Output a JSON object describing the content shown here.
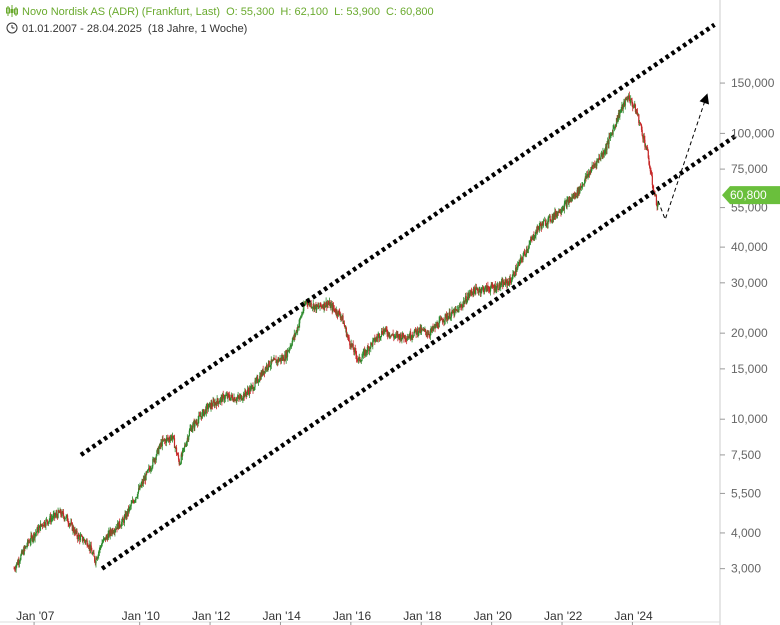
{
  "header": {
    "title": "Novo Nordisk AS (ADR) (Frankfurt, Last)",
    "open": "O: 55,300",
    "high": "H: 62,100",
    "low": "L: 53,900",
    "close": "C: 60,800",
    "range": "01.01.2007 - 28.04.2025",
    "duration": "(18 Jahre, 1 Woche)"
  },
  "icons": {
    "chart": "candlestick-icon",
    "clock": "clock-icon"
  },
  "colors": {
    "up": "#2e8b2e",
    "down": "#c62828",
    "accent": "#6abf3c",
    "trendline": "#000000"
  },
  "chart_data": {
    "type": "candlestick",
    "scale": "log",
    "ylim": [
      2500,
      210000
    ],
    "x_range": [
      "2007-01-01",
      "2025-04-28"
    ],
    "y_ticks": [
      {
        "v": 150000,
        "label": "150,000"
      },
      {
        "v": 100000,
        "label": "100,000"
      },
      {
        "v": 75000,
        "label": "75,000"
      },
      {
        "v": 55000,
        "label": "55,000"
      },
      {
        "v": 40000,
        "label": "40,000"
      },
      {
        "v": 30000,
        "label": "30,000"
      },
      {
        "v": 20000,
        "label": "20,000"
      },
      {
        "v": 15000,
        "label": "15,000"
      },
      {
        "v": 10000,
        "label": "10,000"
      },
      {
        "v": 7500,
        "label": "7,500"
      },
      {
        "v": 5500,
        "label": "5,500"
      },
      {
        "v": 4000,
        "label": "4,000"
      },
      {
        "v": 3000,
        "label": "3,000"
      }
    ],
    "x_ticks": [
      {
        "t": 2007.0,
        "label": "Jan '07"
      },
      {
        "t": 2010.0,
        "label": "Jan '10"
      },
      {
        "t": 2012.0,
        "label": "Jan '12"
      },
      {
        "t": 2014.0,
        "label": "Jan '14"
      },
      {
        "t": 2016.0,
        "label": "Jan '16"
      },
      {
        "t": 2018.0,
        "label": "Jan '18"
      },
      {
        "t": 2020.0,
        "label": "Jan '20"
      },
      {
        "t": 2022.0,
        "label": "Jan '22"
      },
      {
        "t": 2024.0,
        "label": "Jan '24"
      }
    ],
    "last_price": {
      "v": 60800,
      "label": "60,800"
    },
    "price_path": [
      [
        2007.0,
        3000
      ],
      [
        2007.4,
        3700
      ],
      [
        2007.8,
        4300
      ],
      [
        2008.3,
        4700
      ],
      [
        2008.5,
        4500
      ],
      [
        2008.8,
        3900
      ],
      [
        2009.1,
        3700
      ],
      [
        2009.3,
        3200
      ],
      [
        2009.5,
        3700
      ],
      [
        2009.8,
        4100
      ],
      [
        2010.1,
        4400
      ],
      [
        2010.5,
        5500
      ],
      [
        2010.9,
        6900
      ],
      [
        2011.2,
        8300
      ],
      [
        2011.5,
        8700
      ],
      [
        2011.7,
        7000
      ],
      [
        2012.0,
        9200
      ],
      [
        2012.5,
        11000
      ],
      [
        2013.0,
        12000
      ],
      [
        2013.4,
        11800
      ],
      [
        2013.8,
        13000
      ],
      [
        2014.2,
        15500
      ],
      [
        2014.7,
        16500
      ],
      [
        2015.0,
        20000
      ],
      [
        2015.3,
        26000
      ],
      [
        2015.6,
        24500
      ],
      [
        2015.9,
        25500
      ],
      [
        2016.3,
        23000
      ],
      [
        2016.5,
        19000
      ],
      [
        2016.8,
        16000
      ],
      [
        2017.1,
        18000
      ],
      [
        2017.5,
        20500
      ],
      [
        2017.8,
        19500
      ],
      [
        2018.2,
        19500
      ],
      [
        2018.5,
        20500
      ],
      [
        2018.8,
        20000
      ],
      [
        2019.2,
        22500
      ],
      [
        2019.6,
        24000
      ],
      [
        2020.0,
        28000
      ],
      [
        2020.3,
        28500
      ],
      [
        2020.7,
        29000
      ],
      [
        2021.1,
        30500
      ],
      [
        2021.5,
        38000
      ],
      [
        2021.9,
        47000
      ],
      [
        2022.3,
        51000
      ],
      [
        2022.7,
        57000
      ],
      [
        2023.0,
        62000
      ],
      [
        2023.4,
        75000
      ],
      [
        2023.8,
        88000
      ],
      [
        2024.2,
        118000
      ],
      [
        2024.45,
        135000
      ],
      [
        2024.7,
        118000
      ],
      [
        2025.0,
        85000
      ],
      [
        2025.15,
        65000
      ],
      [
        2025.3,
        54500
      ],
      [
        2025.32,
        60800
      ]
    ],
    "trendlines": [
      {
        "style": "dotted",
        "from": [
          2008.9,
          7500
        ],
        "to": [
          2026.9,
          240000
        ]
      },
      {
        "style": "dotted",
        "from": [
          2009.5,
          3000
        ],
        "to": [
          2027.5,
          98000
        ]
      }
    ],
    "projection": {
      "style": "dashed",
      "arrow": true,
      "points": [
        [
          2025.3,
          58000
        ],
        [
          2025.5,
          50000
        ],
        [
          2026.7,
          138000
        ]
      ]
    }
  }
}
